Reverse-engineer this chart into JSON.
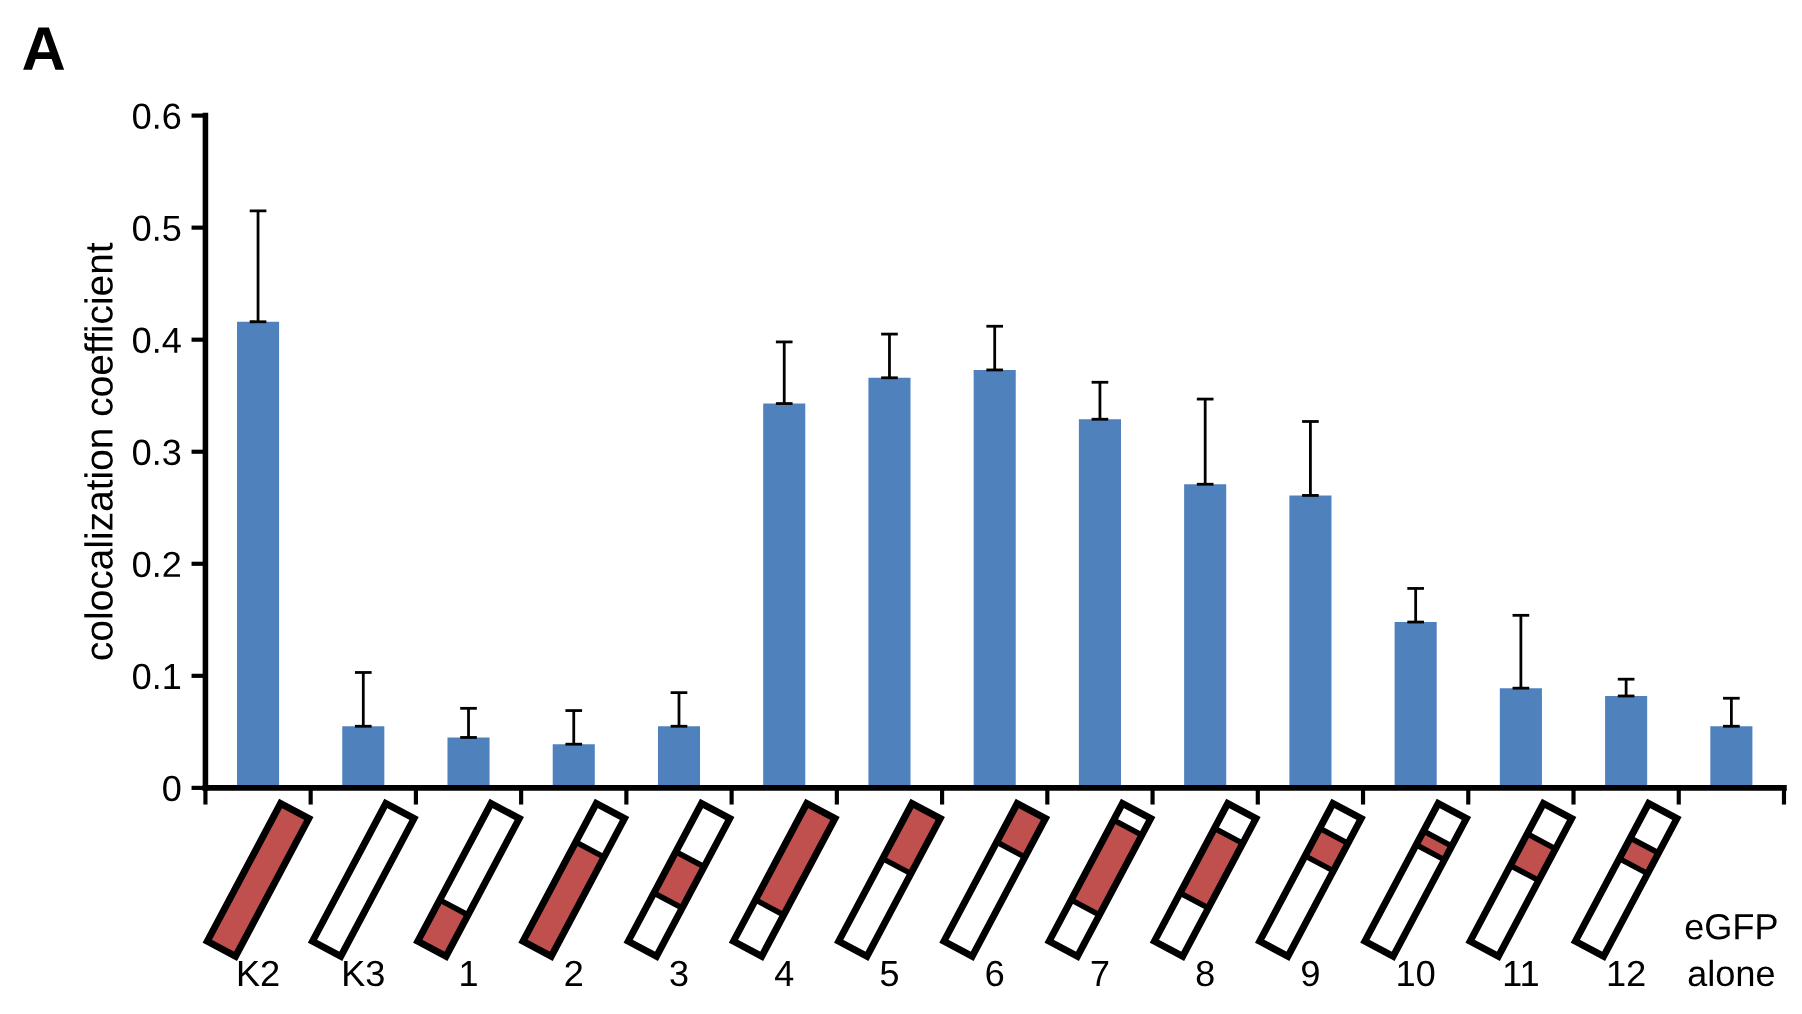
{
  "chart_data": {
    "type": "bar",
    "categories": [
      "K2",
      "K3",
      "1",
      "2",
      "3",
      "4",
      "5",
      "6",
      "7",
      "8",
      "9",
      "10",
      "11",
      "12",
      "eGFP alone"
    ],
    "values": [
      0.416,
      0.055,
      0.045,
      0.039,
      0.055,
      0.343,
      0.366,
      0.373,
      0.329,
      0.271,
      0.261,
      0.148,
      0.089,
      0.082,
      0.055
    ],
    "errors": [
      [
        0.416,
        0.515
      ],
      [
        0.055,
        0.103
      ],
      [
        0.045,
        0.071
      ],
      [
        0.039,
        0.069
      ],
      [
        0.055,
        0.085
      ],
      [
        0.343,
        0.398
      ],
      [
        0.366,
        0.405
      ],
      [
        0.373,
        0.412
      ],
      [
        0.329,
        0.362
      ],
      [
        0.271,
        0.347
      ],
      [
        0.261,
        0.327
      ],
      [
        0.148,
        0.178
      ],
      [
        0.089,
        0.154
      ],
      [
        0.082,
        0.097
      ],
      [
        0.055,
        0.08
      ]
    ],
    "color": "#4f81bd",
    "ylabel": "colocalization coefficient",
    "ylim": [
      0,
      0.6
    ],
    "yticks": [
      0,
      0.1,
      0.2,
      0.3,
      0.4,
      0.5,
      0.6
    ],
    "annotations": [
      "A"
    ],
    "grid": false
  }
}
